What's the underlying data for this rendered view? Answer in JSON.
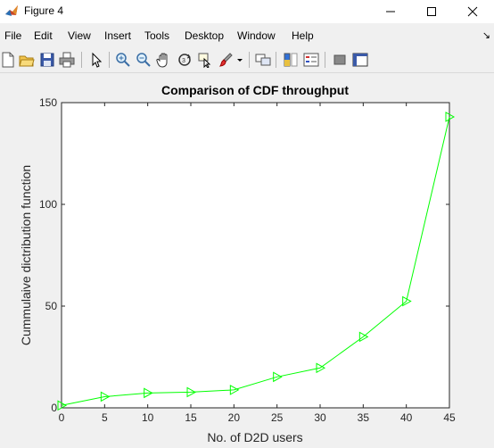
{
  "window": {
    "title": "Figure 4"
  },
  "menu": [
    "File",
    "Edit",
    "View",
    "Insert",
    "Tools",
    "Desktop",
    "Window",
    "Help"
  ],
  "toolbar_icons": [
    "new-figure-icon",
    "open-file-icon",
    "save-icon",
    "print-icon",
    "select-arrow-icon",
    "zoom-in-icon",
    "zoom-out-icon",
    "pan-hand-icon",
    "rotate-3d-icon",
    "data-cursor-icon",
    "brush-icon",
    "brush-dropdown-icon",
    "link-plot-icon",
    "insert-colorbar-icon",
    "insert-legend-icon",
    "hide-plot-tools-icon",
    "show-plot-tools-icon"
  ],
  "colors": {
    "line": "#00ff00",
    "axes": "#262626",
    "background": "#f0f0f0"
  },
  "chart_data": {
    "type": "line",
    "title": "Comparison of CDF throughput",
    "xlabel": "No. of D2D users",
    "ylabel": "Cummulaive dictribution function",
    "xlim": [
      0,
      45
    ],
    "ylim": [
      0,
      150
    ],
    "x_ticks": [
      0,
      5,
      10,
      15,
      20,
      25,
      30,
      35,
      40,
      45
    ],
    "y_ticks": [
      0,
      50,
      100,
      150
    ],
    "grid": false,
    "marker": "triangle-right",
    "series": [
      {
        "x": [
          0,
          5,
          10,
          15,
          20,
          25,
          30,
          35,
          40,
          45
        ],
        "values": [
          1.2,
          5.5,
          7.3,
          7.7,
          8.8,
          15.2,
          19.6,
          34.9,
          52.4,
          143
        ]
      }
    ]
  }
}
